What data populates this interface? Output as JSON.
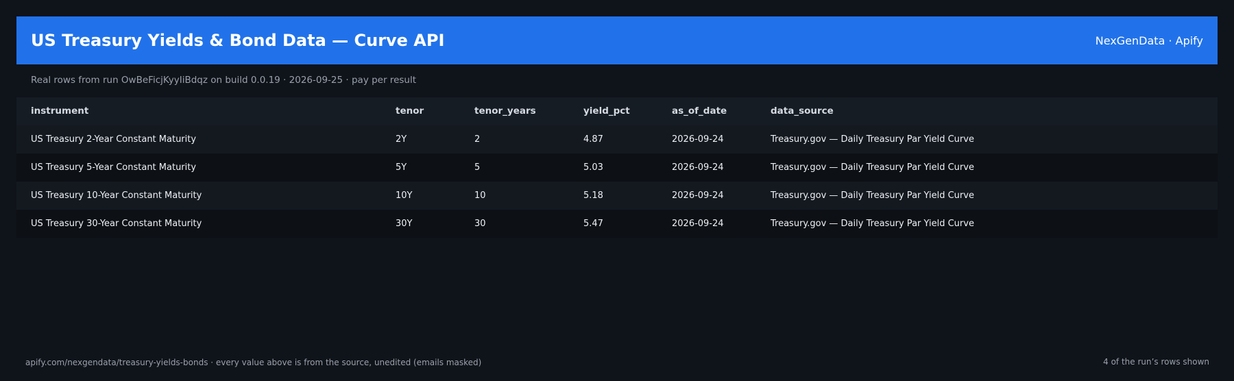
{
  "header": {
    "title": "US Treasury Yields & Bond Data — Curve API",
    "brand": "NexGenData · Apify"
  },
  "subtitle": "Real rows from run OwBeFicjKyyIiBdqz on build 0.0.19 · 2026-09-25 · pay per result",
  "table": {
    "columns": [
      "instrument",
      "tenor",
      "tenor_years",
      "yield_pct",
      "as_of_date",
      "data_source"
    ],
    "rows": [
      [
        "US Treasury 2-Year Constant Maturity",
        "2Y",
        "2",
        "4.87",
        "2026-09-24",
        "Treasury.gov — Daily Treasury Par Yield Curve"
      ],
      [
        "US Treasury 5-Year Constant Maturity",
        "5Y",
        "5",
        "5.03",
        "2026-09-24",
        "Treasury.gov — Daily Treasury Par Yield Curve"
      ],
      [
        "US Treasury 10-Year Constant Maturity",
        "10Y",
        "10",
        "5.18",
        "2026-09-24",
        "Treasury.gov — Daily Treasury Par Yield Curve"
      ],
      [
        "US Treasury 30-Year Constant Maturity",
        "30Y",
        "30",
        "5.47",
        "2026-09-24",
        "Treasury.gov — Daily Treasury Par Yield Curve"
      ]
    ]
  },
  "footer": {
    "left": "apify.com/nexgendata/treasury-yields-bonds  ·  every value above is from the source, unedited (emails masked)",
    "right": "4 of the run’s rows shown"
  },
  "colors": {
    "accent": "#2172ea",
    "background": "#0f131a"
  }
}
